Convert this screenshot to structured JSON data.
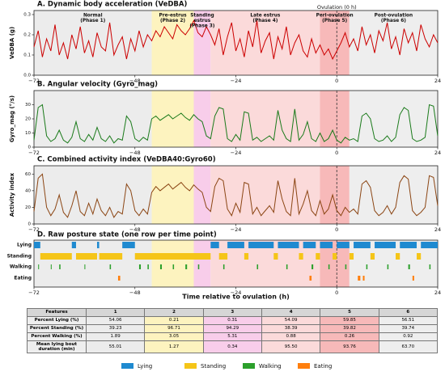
{
  "phases": [
    {
      "label": [
        "Normal",
        "(Phase 1)"
      ],
      "start": -72,
      "end": -44,
      "color": "#ececec"
    },
    {
      "label": [
        "Pre-estrus",
        "(Phase 2)"
      ],
      "start": -44,
      "end": -34,
      "color": "#fdf3bf"
    },
    {
      "label": [
        "Standing",
        "estrus",
        "(Phase 3)"
      ],
      "start": -34,
      "end": -30,
      "color": "#f8cdea"
    },
    {
      "label": [
        "Late estrus",
        "(Phase 4)"
      ],
      "start": -30,
      "end": -4,
      "color": "#fbdada"
    },
    {
      "label": [
        "Peri-ovulation",
        "(Phase 5)"
      ],
      "start": -4,
      "end": 3,
      "color": "#f7b9b9"
    },
    {
      "label": [
        "Post-ovulation",
        "(Phase 6)"
      ],
      "start": 3,
      "end": 24,
      "color": "#eeeeee"
    }
  ],
  "ovulation": {
    "x": 0,
    "label": "Ovulation (0 h)"
  },
  "chart_data": [
    {
      "type": "line",
      "title": "A.  Dynamic body acceleration (VeDBA)",
      "ylabel": "VeDBA (g)",
      "color": "#cc0000",
      "xlim": [
        -72,
        24
      ],
      "xticks": [
        {
          "value": -72,
          "label": "−72"
        },
        {
          "value": -48,
          "label": "−48"
        },
        {
          "value": -24,
          "label": "−24"
        },
        0,
        24
      ],
      "ylim": [
        0,
        0.32
      ],
      "yticks": [
        {
          "value": 0,
          "label": "0.0"
        },
        0.1,
        0.2,
        0.3
      ],
      "x": [
        -72,
        -71,
        -70,
        -69,
        -68,
        -67,
        -66,
        -65,
        -64,
        -63,
        -62,
        -61,
        -60,
        -59,
        -58,
        -57,
        -56,
        -55,
        -54,
        -53,
        -52,
        -51,
        -50,
        -49,
        -48,
        -47,
        -46,
        -45,
        -44,
        -43,
        -42,
        -41,
        -40,
        -39,
        -38,
        -37,
        -36,
        -35,
        -34,
        -33,
        -32,
        -31,
        -30,
        -29,
        -28,
        -27,
        -26,
        -25,
        -24,
        -23,
        -22,
        -21,
        -20,
        -19,
        -18,
        -17,
        -16,
        -15,
        -14,
        -13,
        -12,
        -11,
        -10,
        -9,
        -8,
        -7,
        -6,
        -5,
        -4,
        -3,
        -2,
        -1,
        0,
        1,
        2,
        3,
        4,
        5,
        6,
        7,
        8,
        9,
        10,
        11,
        12,
        13,
        14,
        15,
        16,
        17,
        18,
        19,
        20,
        21,
        22,
        23,
        24
      ],
      "values": [
        0.14,
        0.22,
        0.09,
        0.18,
        0.12,
        0.25,
        0.1,
        0.16,
        0.08,
        0.2,
        0.13,
        0.24,
        0.11,
        0.17,
        0.09,
        0.21,
        0.14,
        0.12,
        0.26,
        0.1,
        0.15,
        0.19,
        0.08,
        0.18,
        0.12,
        0.22,
        0.14,
        0.2,
        0.17,
        0.22,
        0.19,
        0.24,
        0.21,
        0.18,
        0.25,
        0.22,
        0.2,
        0.23,
        0.27,
        0.21,
        0.19,
        0.24,
        0.2,
        0.15,
        0.23,
        0.1,
        0.19,
        0.26,
        0.12,
        0.18,
        0.09,
        0.22,
        0.14,
        0.27,
        0.11,
        0.17,
        0.21,
        0.08,
        0.19,
        0.13,
        0.24,
        0.1,
        0.16,
        0.2,
        0.12,
        0.09,
        0.18,
        0.11,
        0.15,
        0.1,
        0.13,
        0.08,
        0.12,
        0.16,
        0.21,
        0.14,
        0.18,
        0.12,
        0.24,
        0.15,
        0.2,
        0.11,
        0.22,
        0.17,
        0.26,
        0.13,
        0.19,
        0.1,
        0.23,
        0.16,
        0.21,
        0.12,
        0.25,
        0.18,
        0.14,
        0.2,
        0.16
      ]
    },
    {
      "type": "line",
      "title": "B.  Angular velocity (Gyro_mag)",
      "ylabel": "Gyro_mag (°/s)",
      "color": "#1a7a1a",
      "xlim": [
        -72,
        24
      ],
      "xticks": [
        {
          "value": -72,
          "label": "−72"
        },
        {
          "value": -48,
          "label": "−48"
        },
        {
          "value": -24,
          "label": "−24"
        },
        0,
        24
      ],
      "ylim": [
        0,
        40
      ],
      "yticks": [
        0,
        10,
        20,
        30
      ],
      "x": [
        -72,
        -71,
        -70,
        -69,
        -68,
        -67,
        -66,
        -65,
        -64,
        -63,
        -62,
        -61,
        -60,
        -59,
        -58,
        -57,
        -56,
        -55,
        -54,
        -53,
        -52,
        -51,
        -50,
        -49,
        -48,
        -47,
        -46,
        -45,
        -44,
        -43,
        -42,
        -41,
        -40,
        -39,
        -38,
        -37,
        -36,
        -35,
        -34,
        -33,
        -32,
        -31,
        -30,
        -29,
        -28,
        -27,
        -26,
        -25,
        -24,
        -23,
        -22,
        -21,
        -20,
        -19,
        -18,
        -17,
        -16,
        -15,
        -14,
        -13,
        -12,
        -11,
        -10,
        -9,
        -8,
        -7,
        -6,
        -5,
        -4,
        -3,
        -2,
        -1,
        0,
        1,
        2,
        3,
        4,
        5,
        6,
        7,
        8,
        9,
        10,
        11,
        12,
        13,
        14,
        15,
        16,
        17,
        18,
        19,
        20,
        21,
        22,
        23,
        24
      ],
      "values": [
        5,
        28,
        30,
        8,
        4,
        6,
        12,
        5,
        3,
        7,
        18,
        6,
        4,
        9,
        5,
        14,
        6,
        4,
        8,
        3,
        6,
        5,
        22,
        18,
        6,
        4,
        7,
        5,
        20,
        22,
        19,
        21,
        23,
        20,
        22,
        24,
        21,
        19,
        23,
        20,
        18,
        8,
        6,
        22,
        28,
        27,
        6,
        4,
        9,
        5,
        25,
        24,
        5,
        7,
        4,
        6,
        8,
        5,
        26,
        12,
        6,
        4,
        27,
        5,
        9,
        18,
        6,
        4,
        10,
        4,
        6,
        12,
        5,
        3,
        7,
        5,
        6,
        4,
        22,
        24,
        20,
        6,
        4,
        5,
        8,
        4,
        7,
        23,
        28,
        26,
        6,
        4,
        5,
        7,
        30,
        29,
        8
      ]
    },
    {
      "type": "line",
      "title": "C.  Combined activity index (VeDBA40:Gyro60)",
      "ylabel": "Activity index",
      "color": "#8b4513",
      "xlim": [
        -72,
        24
      ],
      "xticks": [
        {
          "value": -72,
          "label": "−72"
        },
        {
          "value": -48,
          "label": "−48"
        },
        {
          "value": -24,
          "label": "−24"
        },
        0,
        24
      ],
      "ylim": [
        0,
        70
      ],
      "yticks": [
        0,
        20,
        40,
        60
      ],
      "x": [
        -72,
        -71,
        -70,
        -69,
        -68,
        -67,
        -66,
        -65,
        -64,
        -63,
        -62,
        -61,
        -60,
        -59,
        -58,
        -57,
        -56,
        -55,
        -54,
        -53,
        -52,
        -51,
        -50,
        -49,
        -48,
        -47,
        -46,
        -45,
        -44,
        -43,
        -42,
        -41,
        -40,
        -39,
        -38,
        -37,
        -36,
        -35,
        -34,
        -33,
        -32,
        -31,
        -30,
        -29,
        -28,
        -27,
        -26,
        -25,
        -24,
        -23,
        -22,
        -21,
        -20,
        -19,
        -18,
        -17,
        -16,
        -15,
        -14,
        -13,
        -12,
        -11,
        -10,
        -9,
        -8,
        -7,
        -6,
        -5,
        -4,
        -3,
        -2,
        -1,
        0,
        1,
        2,
        3,
        4,
        5,
        6,
        7,
        8,
        9,
        10,
        11,
        12,
        13,
        14,
        15,
        16,
        17,
        18,
        19,
        20,
        21,
        22,
        23,
        24
      ],
      "values": [
        15,
        55,
        60,
        20,
        10,
        18,
        35,
        14,
        8,
        22,
        40,
        15,
        10,
        25,
        12,
        30,
        16,
        10,
        20,
        8,
        15,
        12,
        48,
        40,
        16,
        10,
        18,
        12,
        38,
        45,
        40,
        44,
        48,
        42,
        46,
        50,
        44,
        40,
        47,
        42,
        38,
        20,
        15,
        45,
        55,
        52,
        18,
        10,
        25,
        14,
        50,
        48,
        12,
        20,
        10,
        16,
        22,
        14,
        52,
        30,
        15,
        10,
        55,
        12,
        24,
        40,
        16,
        10,
        28,
        12,
        18,
        35,
        16,
        10,
        20,
        14,
        18,
        12,
        48,
        52,
        44,
        16,
        10,
        14,
        22,
        12,
        20,
        50,
        58,
        54,
        16,
        10,
        14,
        20,
        58,
        56,
        22
      ]
    },
    {
      "type": "raster",
      "title": "D.  Raw posture state (one row per time point)",
      "xlabel": "Time relative to ovulation (h)",
      "xlim": [
        -72,
        24
      ],
      "xticks": [
        {
          "value": -72,
          "label": "−72"
        },
        {
          "value": -48,
          "label": "−48"
        },
        {
          "value": -24,
          "label": "−24"
        },
        0,
        24
      ],
      "series": [
        {
          "name": "Lying",
          "color": "#1f8ad0",
          "intervals": [
            [
              -72,
              -70.5
            ],
            [
              -63,
              -62
            ],
            [
              -57,
              -56.5
            ],
            [
              -51,
              -48
            ],
            [
              -30,
              -28
            ],
            [
              -26,
              -22
            ],
            [
              -21,
              -15
            ],
            [
              -14,
              -9
            ],
            [
              -8,
              -5
            ],
            [
              -4,
              -1
            ],
            [
              0,
              3
            ],
            [
              4,
              8
            ],
            [
              9,
              14
            ],
            [
              15,
              19
            ],
            [
              20,
              24
            ]
          ]
        },
        {
          "name": "Standing",
          "color": "#f5c518",
          "intervals": [
            [
              -70.5,
              -63
            ],
            [
              -62,
              -57
            ],
            [
              -56.5,
              -51
            ],
            [
              -48,
              -30
            ],
            [
              -28,
              -26
            ],
            [
              -22,
              -21
            ],
            [
              -15,
              -14
            ],
            [
              -9,
              -8
            ],
            [
              -5,
              -4
            ],
            [
              -1,
              0
            ],
            [
              3,
              4
            ],
            [
              8,
              9
            ],
            [
              14,
              15
            ],
            [
              19,
              20
            ]
          ]
        },
        {
          "name": "Walking",
          "color": "#2ca02c",
          "intervals": [
            [
              -71,
              -70.8
            ],
            [
              -68,
              -67.8
            ],
            [
              -66,
              -65.7
            ],
            [
              -60,
              -59.8
            ],
            [
              -54,
              -53.7
            ],
            [
              -47,
              -46.6
            ],
            [
              -45,
              -44.7
            ],
            [
              -42,
              -41.6
            ],
            [
              -39,
              -38.7
            ],
            [
              -36,
              -35.6
            ],
            [
              -33,
              -32.7
            ],
            [
              -27,
              -26.7
            ],
            [
              -19,
              -18.7
            ],
            [
              -12,
              -11.7
            ],
            [
              -6,
              -5.6
            ],
            [
              -2,
              -1.7
            ],
            [
              2,
              2.3
            ],
            [
              7,
              7.3
            ],
            [
              12,
              12.3
            ],
            [
              17,
              17.4
            ],
            [
              22,
              22.3
            ]
          ]
        },
        {
          "name": "Eating",
          "color": "#ff7f0e",
          "intervals": [
            [
              -52,
              -51.5
            ],
            [
              -6.5,
              -6
            ],
            [
              5,
              5.6
            ],
            [
              6.2,
              6.6
            ],
            [
              18,
              18.4
            ]
          ]
        }
      ]
    }
  ],
  "table": {
    "header": [
      "Features",
      "1",
      "2",
      "3",
      "4",
      "5",
      "6"
    ],
    "column_colors": [
      "#ececec",
      "#fdf3bf",
      "#f8cdea",
      "#fbdada",
      "#f7b9b9",
      "#eeeeee"
    ],
    "rows": [
      [
        "Percent Lying (%)",
        "54.06",
        "0.21",
        "0.31",
        "54.09",
        "59.85",
        "56.51"
      ],
      [
        "Percent Standing (%)",
        "39.23",
        "96.71",
        "94.29",
        "38.39",
        "39.82",
        "39.74"
      ],
      [
        "Percent Walking (%)",
        "1.89",
        "3.05",
        "5.31",
        "0.88",
        "0.26",
        "0.92"
      ],
      [
        "Mean lying bout duration (min)",
        "55.01",
        "1.27",
        "0.34",
        "95.50",
        "93.76",
        "63.70"
      ]
    ]
  }
}
